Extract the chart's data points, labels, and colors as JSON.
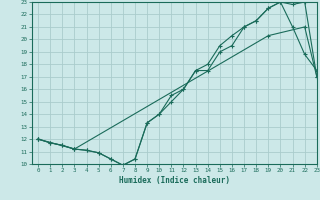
{
  "title": "",
  "xlabel": "Humidex (Indice chaleur)",
  "background_color": "#cce8e8",
  "line_color": "#1a6b5a",
  "grid_color": "#aacccc",
  "xlim": [
    -0.5,
    23
  ],
  "ylim": [
    10,
    23
  ],
  "xticks": [
    0,
    1,
    2,
    3,
    4,
    5,
    6,
    7,
    8,
    9,
    10,
    11,
    12,
    13,
    14,
    15,
    16,
    17,
    18,
    19,
    20,
    21,
    22,
    23
  ],
  "yticks": [
    10,
    11,
    12,
    13,
    14,
    15,
    16,
    17,
    18,
    19,
    20,
    21,
    22,
    23
  ],
  "line1_x": [
    0,
    1,
    2,
    3,
    4,
    5,
    6,
    7,
    8,
    9,
    10,
    11,
    12,
    13,
    14,
    15,
    16,
    17,
    18,
    19,
    20,
    21,
    22,
    23
  ],
  "line1_y": [
    12,
    11.7,
    11.5,
    11.2,
    11.1,
    10.9,
    10.4,
    9.9,
    10.4,
    13.3,
    14.0,
    15.0,
    16.0,
    17.5,
    17.5,
    19.0,
    19.5,
    21.0,
    21.5,
    22.5,
    23.0,
    22.8,
    23.0,
    17.0
  ],
  "line2_x": [
    0,
    1,
    2,
    3,
    4,
    5,
    6,
    7,
    8,
    9,
    10,
    11,
    12,
    13,
    14,
    15,
    16,
    17,
    18,
    19,
    20,
    21,
    22,
    23
  ],
  "line2_y": [
    12,
    11.7,
    11.5,
    11.2,
    11.1,
    10.9,
    10.4,
    9.9,
    10.4,
    13.3,
    14.0,
    15.5,
    16.0,
    17.5,
    18.0,
    19.5,
    20.3,
    21.0,
    21.5,
    22.5,
    23.0,
    21.0,
    18.8,
    17.5
  ],
  "line3_x": [
    0,
    3,
    19,
    22,
    23
  ],
  "line3_y": [
    12,
    11.2,
    20.3,
    21.0,
    17.0
  ]
}
